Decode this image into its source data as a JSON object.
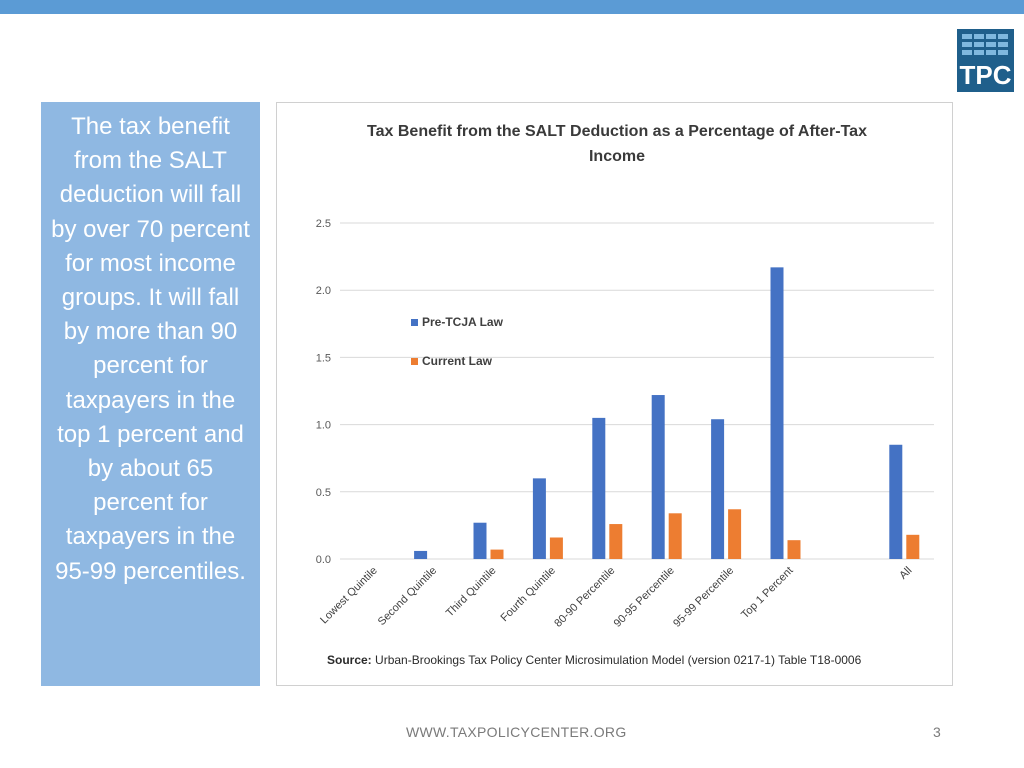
{
  "slide": {
    "callout_text": "The tax benefit from the SALT deduction will fall by over 70 percent for most income groups. It will fall by more than 90 percent for taxpayers in the top 1 percent and by about 65 percent for taxpayers in the 95-99 percentiles.",
    "logo_text": "TPC",
    "footer_url": "WWW.TAXPOLICYCENTER.ORG",
    "page_number": "3",
    "source_label": "Source:",
    "source_text": "Urban-Brookings Tax Policy Center Microsimulation Model (version 0217-1) Table T18-0006"
  },
  "colors": {
    "accent_bar": "#5b9bd5",
    "callout_bg": "#8fb8e2",
    "pre_tcja": "#4472c4",
    "current_law": "#ed7d31",
    "logo_bg": "#1f5f8b"
  },
  "chart_data": {
    "type": "bar",
    "title": "Tax Benefit from the SALT Deduction as a Percentage of After-Tax Income",
    "categories": [
      "Lowest Quintile",
      "Second Quintile",
      "Third Quintile",
      "Fourth Quintile",
      "80-90 Percentile",
      "90-95 Percentile",
      "95-99 Percentile",
      "Top 1 Percent",
      "",
      "All"
    ],
    "series": [
      {
        "name": "Pre-TCJA Law",
        "color": "#4472c4",
        "values": [
          0.0,
          0.06,
          0.27,
          0.6,
          1.05,
          1.22,
          1.04,
          2.17,
          null,
          0.85
        ]
      },
      {
        "name": "Current Law",
        "color": "#ed7d31",
        "values": [
          0.0,
          0.0,
          0.07,
          0.16,
          0.26,
          0.34,
          0.37,
          0.14,
          null,
          0.18
        ]
      }
    ],
    "ylim": [
      0,
      2.5
    ],
    "yticks": [
      "0.0",
      "0.5",
      "1.0",
      "1.5",
      "2.0",
      "2.5"
    ],
    "grid": true,
    "legend_position": "upper-left"
  }
}
